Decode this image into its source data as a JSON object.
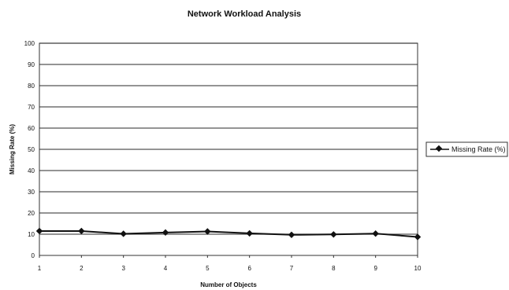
{
  "chart_data": {
    "type": "line",
    "title": "Network Workload Analysis",
    "xlabel": "Number of Objects",
    "ylabel": "Missing Rate (%)",
    "x": [
      1,
      2,
      3,
      4,
      5,
      6,
      7,
      8,
      9,
      10
    ],
    "xticks": [
      "1",
      "2",
      "3",
      "4",
      "5",
      "6",
      "7",
      "8",
      "9",
      "10"
    ],
    "yticks": [
      "0",
      "10",
      "20",
      "30",
      "40",
      "50",
      "60",
      "70",
      "80",
      "90",
      "100"
    ],
    "ylim": [
      0,
      100
    ],
    "grid": true,
    "legend_position": "right",
    "series": [
      {
        "name": "Missing Rate (%)",
        "values": [
          11.5,
          11.5,
          10.2,
          10.8,
          11.3,
          10.4,
          9.7,
          9.9,
          10.3,
          8.7
        ],
        "color": "#111111",
        "marker": "diamond"
      }
    ]
  }
}
